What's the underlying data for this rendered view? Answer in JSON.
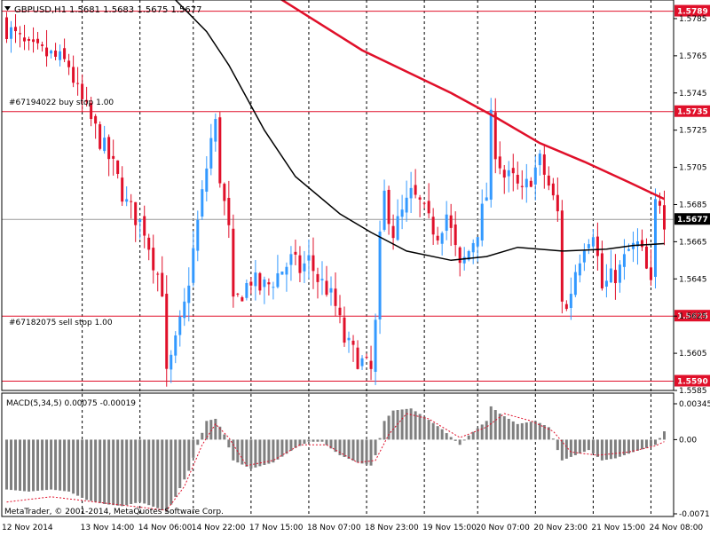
{
  "header": {
    "symbol_text": "GBPUSD,H1",
    "ohlc_text": "1.5681 1.5683 1.5675 1.5677"
  },
  "annotations": {
    "buy_stop_label": "#67194022 buy stop 1.00",
    "sell_stop_label": "#67182075 sell stop 1.00",
    "copyright": "MetaTrader, © 2001-2014, MetaQuotes Software Corp."
  },
  "macd": {
    "label": "MACD(5,34,5) 0.00075 -0.00019",
    "ticks": [
      "0.00345",
      "0.00",
      "-0.00714"
    ]
  },
  "colors": {
    "bull": "#3399ff",
    "bear": "#e0102a",
    "ma_slow": "#e0102a",
    "ma_fast": "#000000",
    "level_line": "#e0102a",
    "label_bg": "#e0102a",
    "current_price_bg": "#000000",
    "histogram": "#7f7f7f",
    "signal": "#e0102a",
    "grid": "#000000"
  },
  "chart_data": [
    {
      "type": "candlestick",
      "title": "GBPUSD,H1",
      "timeframe": "H1",
      "ylim": [
        1.5585,
        1.5795
      ],
      "y_ticks": [
        "1.5785",
        "1.5765",
        "1.5745",
        "1.5725",
        "1.5705",
        "1.5685",
        "1.5665",
        "1.5645",
        "1.5625",
        "1.5605",
        "1.5585"
      ],
      "x_tick_labels": [
        "12 Nov 2014",
        "13 Nov 14:00",
        "14 Nov 06:00",
        "14 Nov 22:00",
        "17 Nov 15:00",
        "18 Nov 07:00",
        "18 Nov 23:00",
        "19 Nov 15:00",
        "20 Nov 07:00",
        "20 Nov 23:00",
        "21 Nov 15:00",
        "24 Nov 08:00"
      ],
      "levels": [
        {
          "price": 1.5789,
          "label": "1.5789"
        },
        {
          "price": 1.5735,
          "label": "1.5735"
        },
        {
          "price": 1.5625,
          "label": "1.5625"
        },
        {
          "price": 1.559,
          "label": "1.5590"
        }
      ],
      "current_price": {
        "price": 1.5677,
        "label": "1.5677"
      },
      "series": [
        {
          "name": "price",
          "close_path": [
            [
              0,
              1.578
            ],
            [
              5,
              1.5768
            ],
            [
              10,
              1.5765
            ],
            [
              14,
              1.576
            ],
            [
              16,
              1.5745
            ],
            [
              20,
              1.5725
            ],
            [
              24,
              1.5705
            ],
            [
              27,
              1.5685
            ],
            [
              31,
              1.5672
            ],
            [
              33,
              1.5655
            ],
            [
              35,
              1.564
            ],
            [
              36,
              1.5592
            ],
            [
              38,
              1.561
            ],
            [
              40,
              1.563
            ],
            [
              42,
              1.566
            ],
            [
              44,
              1.569
            ],
            [
              46,
              1.572
            ],
            [
              47,
              1.5728
            ],
            [
              48,
              1.57
            ],
            [
              50,
              1.567
            ],
            [
              51,
              1.563
            ],
            [
              53,
              1.5638
            ],
            [
              55,
              1.5645
            ],
            [
              57,
              1.564
            ],
            [
              59,
              1.5642
            ],
            [
              62,
              1.565
            ],
            [
              64,
              1.5655
            ],
            [
              66,
              1.565
            ],
            [
              68,
              1.5655
            ],
            [
              70,
              1.5645
            ],
            [
              72,
              1.564
            ],
            [
              74,
              1.563
            ],
            [
              76,
              1.5612
            ],
            [
              78,
              1.5605
            ],
            [
              80,
              1.56
            ],
            [
              82,
              1.5595
            ],
            [
              83,
              1.562
            ],
            [
              84,
              1.5665
            ],
            [
              85,
              1.569
            ],
            [
              87,
              1.567
            ],
            [
              89,
              1.568
            ],
            [
              91,
              1.569
            ],
            [
              93,
              1.5685
            ],
            [
              95,
              1.5675
            ],
            [
              97,
              1.567
            ],
            [
              99,
              1.568
            ],
            [
              102,
              1.565
            ],
            [
              104,
              1.566
            ],
            [
              106,
              1.5672
            ],
            [
              108,
              1.569
            ],
            [
              109,
              1.573
            ],
            [
              110,
              1.5715
            ],
            [
              112,
              1.57
            ],
            [
              114,
              1.5698
            ],
            [
              116,
              1.569
            ],
            [
              118,
              1.57
            ],
            [
              120,
              1.5708
            ],
            [
              122,
              1.5695
            ],
            [
              124,
              1.568
            ],
            [
              125,
              1.5635
            ],
            [
              126,
              1.5628
            ],
            [
              128,
              1.565
            ],
            [
              130,
              1.5665
            ],
            [
              132,
              1.5672
            ],
            [
              134,
              1.564
            ],
            [
              136,
              1.5645
            ],
            [
              138,
              1.565
            ],
            [
              140,
              1.566
            ],
            [
              142,
              1.5663
            ],
            [
              143,
              1.5658
            ],
            [
              145,
              1.564
            ],
            [
              146,
              1.5685
            ],
            [
              147,
              1.5688
            ],
            [
              148,
              1.5677
            ]
          ]
        },
        {
          "name": "ma_slow",
          "points": [
            [
              60,
              1.5798
            ],
            [
              80,
              1.5768
            ],
            [
              100,
              1.5745
            ],
            [
              110,
              1.5732
            ],
            [
              120,
              1.5718
            ],
            [
              130,
              1.5708
            ],
            [
              140,
              1.5697
            ],
            [
              148,
              1.5688
            ]
          ]
        },
        {
          "name": "ma_fast",
          "points": [
            [
              38,
              1.5795
            ],
            [
              45,
              1.5778
            ],
            [
              50,
              1.576
            ],
            [
              58,
              1.5725
            ],
            [
              65,
              1.57
            ],
            [
              75,
              1.568
            ],
            [
              82,
              1.567
            ],
            [
              90,
              1.566
            ],
            [
              100,
              1.5655
            ],
            [
              108,
              1.5657
            ],
            [
              115,
              1.5662
            ],
            [
              125,
              1.566
            ],
            [
              135,
              1.5661
            ],
            [
              141,
              1.5663
            ],
            [
              148,
              1.5664
            ]
          ]
        }
      ]
    },
    {
      "type": "bar",
      "title": "MACD(5,34,5) 0.00075 -0.00019",
      "ylim": [
        -0.00714,
        0.00345
      ],
      "y_ticks": [
        0.00345,
        0.0,
        -0.00714
      ],
      "series": [
        {
          "name": "histogram",
          "path": [
            [
              0,
              -0.0048
            ],
            [
              5,
              -0.005
            ],
            [
              10,
              -0.0048
            ],
            [
              14,
              -0.005
            ],
            [
              18,
              -0.0058
            ],
            [
              22,
              -0.0062
            ],
            [
              26,
              -0.0064
            ],
            [
              30,
              -0.006
            ],
            [
              34,
              -0.0066
            ],
            [
              36,
              -0.007
            ],
            [
              38,
              -0.0055
            ],
            [
              41,
              -0.003
            ],
            [
              43,
              -0.0005
            ],
            [
              45,
              0.0018
            ],
            [
              47,
              0.002
            ],
            [
              49,
              0.0005
            ],
            [
              51,
              -0.002
            ],
            [
              55,
              -0.0028
            ],
            [
              60,
              -0.0022
            ],
            [
              65,
              -0.0008
            ],
            [
              68,
              -0.0002
            ],
            [
              71,
              -0.0002
            ],
            [
              75,
              -0.0015
            ],
            [
              79,
              -0.0022
            ],
            [
              82,
              -0.0025
            ],
            [
              83,
              -0.0015
            ],
            [
              85,
              0.0018
            ],
            [
              87,
              0.0028
            ],
            [
              91,
              0.003
            ],
            [
              94,
              0.0022
            ],
            [
              98,
              0.001
            ],
            [
              102,
              -0.0005
            ],
            [
              104,
              0.0004
            ],
            [
              108,
              0.0018
            ],
            [
              109,
              0.0032
            ],
            [
              111,
              0.0025
            ],
            [
              115,
              0.0015
            ],
            [
              119,
              0.0018
            ],
            [
              122,
              0.0012
            ],
            [
              124,
              -0.001
            ],
            [
              125,
              -0.002
            ],
            [
              128,
              -0.0015
            ],
            [
              131,
              -0.001
            ],
            [
              134,
              -0.002
            ],
            [
              137,
              -0.0018
            ],
            [
              141,
              -0.0012
            ],
            [
              144,
              -0.0008
            ],
            [
              146,
              -0.0005
            ],
            [
              148,
              0.0008
            ]
          ]
        },
        {
          "name": "signal",
          "path": [
            [
              0,
              -0.006
            ],
            [
              10,
              -0.0055
            ],
            [
              20,
              -0.006
            ],
            [
              30,
              -0.0065
            ],
            [
              36,
              -0.0068
            ],
            [
              40,
              -0.0045
            ],
            [
              44,
              -0.0005
            ],
            [
              47,
              0.0015
            ],
            [
              50,
              0.0002
            ],
            [
              54,
              -0.0025
            ],
            [
              60,
              -0.002
            ],
            [
              66,
              -0.0005
            ],
            [
              72,
              -0.0005
            ],
            [
              79,
              -0.0022
            ],
            [
              83,
              -0.002
            ],
            [
              86,
              0.0005
            ],
            [
              90,
              0.0025
            ],
            [
              95,
              0.002
            ],
            [
              102,
              0.0002
            ],
            [
              108,
              0.0012
            ],
            [
              112,
              0.0025
            ],
            [
              118,
              0.0018
            ],
            [
              123,
              0.0008
            ],
            [
              127,
              -0.0012
            ],
            [
              133,
              -0.0015
            ],
            [
              140,
              -0.0012
            ],
            [
              146,
              -0.0006
            ],
            [
              148,
              -0.0002
            ]
          ]
        }
      ]
    }
  ]
}
